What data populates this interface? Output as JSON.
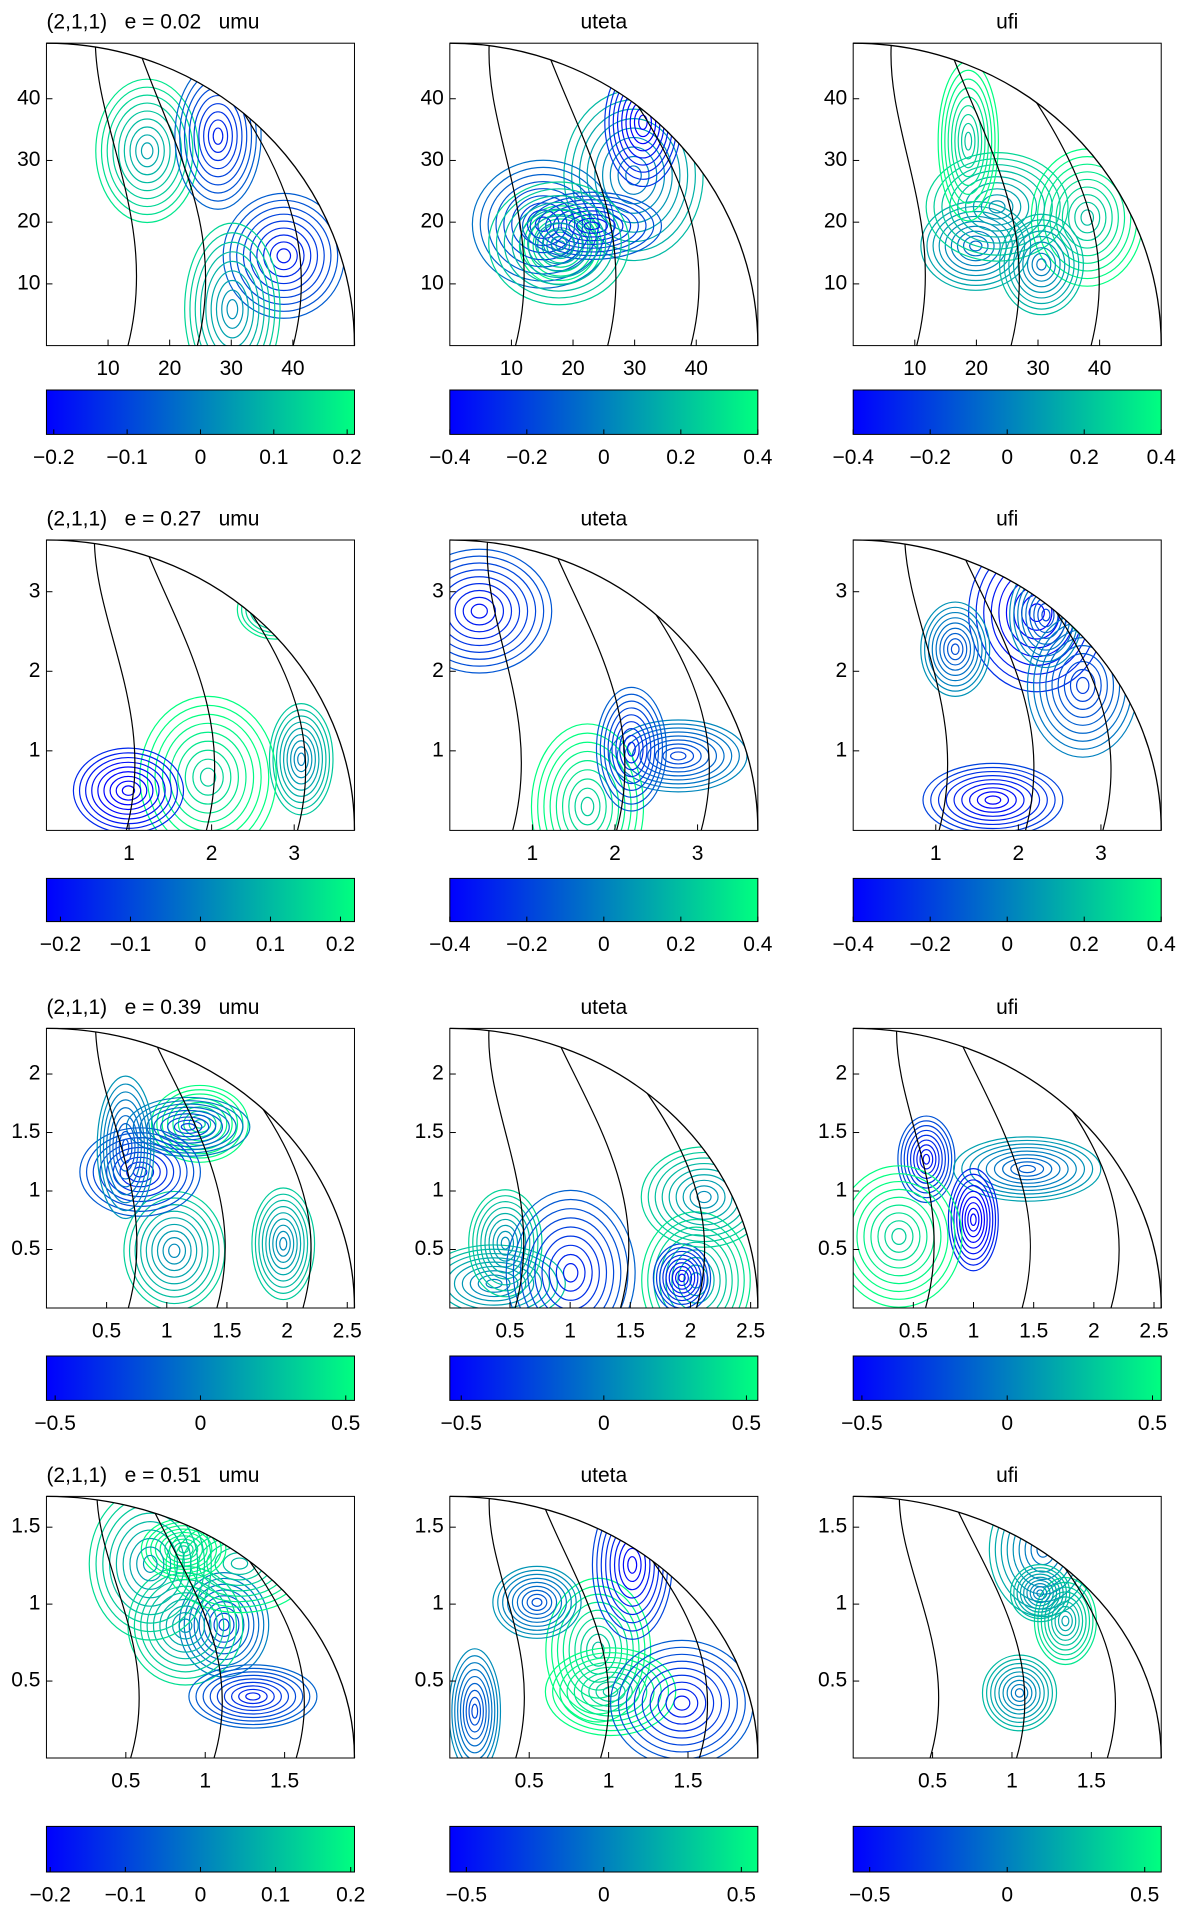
{
  "chart_data": [
    {
      "type": "contour",
      "title": "(2,1,1)   e = 0.02   umu",
      "xlim": [
        0,
        50
      ],
      "ylim": [
        0,
        49
      ],
      "xticks": [
        10,
        20,
        30,
        40
      ],
      "yticks": [
        10,
        20,
        30,
        40
      ],
      "colormap": [
        "#0000ff",
        "#00ff80"
      ],
      "colorbar": {
        "clim": [
          -0.21,
          0.21
        ],
        "ticks": [
          {
            "value": -0.2,
            "label": "−0.2"
          },
          {
            "value": -0.1,
            "label": "−0.1"
          },
          0,
          0.1,
          0.2
        ]
      }
    },
    {
      "type": "contour",
      "title": "uteta",
      "xlim": [
        0,
        50
      ],
      "ylim": [
        0,
        49
      ],
      "xticks": [
        10,
        20,
        30,
        40
      ],
      "yticks": [
        10,
        20,
        30,
        40
      ],
      "colormap": [
        "#0000ff",
        "#00ff80"
      ],
      "colorbar": {
        "clim": [
          -0.4,
          0.4
        ],
        "ticks": [
          {
            "value": -0.4,
            "label": "−0.4"
          },
          {
            "value": -0.2,
            "label": "−0.2"
          },
          0,
          0.2,
          0.4
        ]
      }
    },
    {
      "type": "contour",
      "title": "ufi",
      "xlim": [
        0,
        50
      ],
      "ylim": [
        0,
        49
      ],
      "xticks": [
        10,
        20,
        30,
        40
      ],
      "yticks": [
        10,
        20,
        30,
        40
      ],
      "colormap": [
        "#0000ff",
        "#00ff80"
      ],
      "colorbar": {
        "clim": [
          -0.4,
          0.4
        ],
        "ticks": [
          {
            "value": -0.4,
            "label": "−0.4"
          },
          {
            "value": -0.2,
            "label": "−0.2"
          },
          0,
          0.2,
          0.4
        ]
      }
    },
    {
      "type": "contour",
      "title": "(2,1,1)   e = 0.27   umu",
      "xlim": [
        0,
        3.73
      ],
      "ylim": [
        0,
        3.65
      ],
      "xticks": [
        1,
        2,
        3
      ],
      "yticks": [
        1,
        2,
        3
      ],
      "colormap": [
        "#0000ff",
        "#00ff80"
      ],
      "colorbar": {
        "clim": [
          -0.22,
          0.22
        ],
        "ticks": [
          {
            "value": -0.2,
            "label": "−0.2"
          },
          {
            "value": -0.1,
            "label": "−0.1"
          },
          0,
          0.1,
          0.2
        ]
      }
    },
    {
      "type": "contour",
      "title": "uteta",
      "xlim": [
        0,
        3.73
      ],
      "ylim": [
        0,
        3.65
      ],
      "xticks": [
        1,
        2,
        3
      ],
      "yticks": [
        1,
        2,
        3
      ],
      "colormap": [
        "#0000ff",
        "#00ff80"
      ],
      "colorbar": {
        "clim": [
          -0.4,
          0.4
        ],
        "ticks": [
          {
            "value": -0.4,
            "label": "−0.4"
          },
          {
            "value": -0.2,
            "label": "−0.2"
          },
          0,
          0.2,
          0.4
        ]
      }
    },
    {
      "type": "contour",
      "title": "ufi",
      "xlim": [
        0,
        3.73
      ],
      "ylim": [
        0,
        3.65
      ],
      "xticks": [
        1,
        2,
        3
      ],
      "yticks": [
        1,
        2,
        3
      ],
      "colormap": [
        "#0000ff",
        "#00ff80"
      ],
      "colorbar": {
        "clim": [
          -0.4,
          0.4
        ],
        "ticks": [
          {
            "value": -0.4,
            "label": "−0.4"
          },
          {
            "value": -0.2,
            "label": "−0.2"
          },
          0,
          0.2,
          0.4
        ]
      }
    },
    {
      "type": "contour",
      "title": "(2,1,1)   e = 0.39   umu",
      "xlim": [
        0,
        2.56
      ],
      "ylim": [
        0,
        2.39
      ],
      "xticks": [
        0.5,
        1,
        1.5,
        2,
        2.5
      ],
      "yticks": [
        0.5,
        1,
        1.5,
        2
      ],
      "colormap": [
        "#0000ff",
        "#00ff80"
      ],
      "colorbar": {
        "clim": [
          -0.53,
          0.53
        ],
        "ticks": [
          {
            "value": -0.5,
            "label": "−0.5"
          },
          0,
          0.5
        ]
      }
    },
    {
      "type": "contour",
      "title": "uteta",
      "xlim": [
        0,
        2.56
      ],
      "ylim": [
        0,
        2.39
      ],
      "xticks": [
        0.5,
        1,
        1.5,
        2,
        2.5
      ],
      "yticks": [
        0.5,
        1,
        1.5,
        2
      ],
      "colormap": [
        "#0000ff",
        "#00ff80"
      ],
      "colorbar": {
        "clim": [
          -0.54,
          0.54
        ],
        "ticks": [
          {
            "value": -0.5,
            "label": "−0.5"
          },
          0,
          0.5
        ]
      }
    },
    {
      "type": "contour",
      "title": "ufi",
      "xlim": [
        0,
        2.56
      ],
      "ylim": [
        0,
        2.39
      ],
      "xticks": [
        0.5,
        1,
        1.5,
        2,
        2.5
      ],
      "yticks": [
        0.5,
        1,
        1.5,
        2
      ],
      "colormap": [
        "#0000ff",
        "#00ff80"
      ],
      "colorbar": {
        "clim": [
          -0.53,
          0.53
        ],
        "ticks": [
          {
            "value": -0.5,
            "label": "−0.5"
          },
          0,
          0.5
        ]
      }
    },
    {
      "type": "contour",
      "title": "(2,1,1)   e = 0.51   umu",
      "xlim": [
        0,
        1.94
      ],
      "ylim": [
        0,
        1.7
      ],
      "xticks": [
        0.5,
        1,
        1.5
      ],
      "yticks": [
        0.5,
        1,
        1.5
      ],
      "colormap": [
        "#0000ff",
        "#00ff80"
      ],
      "colorbar": {
        "clim": [
          -0.205,
          0.205
        ],
        "ticks": [
          {
            "value": -0.2,
            "label": "−0.2"
          },
          {
            "value": -0.1,
            "label": "−0.1"
          },
          0,
          0.1,
          0.2
        ]
      }
    },
    {
      "type": "contour",
      "title": "uteta",
      "xlim": [
        0,
        1.94
      ],
      "ylim": [
        0,
        1.7
      ],
      "xticks": [
        0.5,
        1,
        1.5
      ],
      "yticks": [
        0.5,
        1,
        1.5
      ],
      "colormap": [
        "#0000ff",
        "#00ff80"
      ],
      "colorbar": {
        "clim": [
          -0.56,
          0.56
        ],
        "ticks": [
          {
            "value": -0.5,
            "label": "−0.5"
          },
          0,
          0.5
        ]
      }
    },
    {
      "type": "contour",
      "title": "ufi",
      "xlim": [
        0,
        1.94
      ],
      "ylim": [
        0,
        1.7
      ],
      "xticks": [
        0.5,
        1,
        1.5
      ],
      "yticks": [
        0.5,
        1,
        1.5
      ],
      "colormap": [
        "#0000ff",
        "#00ff80"
      ],
      "colorbar": {
        "clim": [
          -0.56,
          0.56
        ],
        "ticks": [
          {
            "value": -0.5,
            "label": "−0.5"
          },
          0,
          0.5
        ]
      }
    }
  ]
}
